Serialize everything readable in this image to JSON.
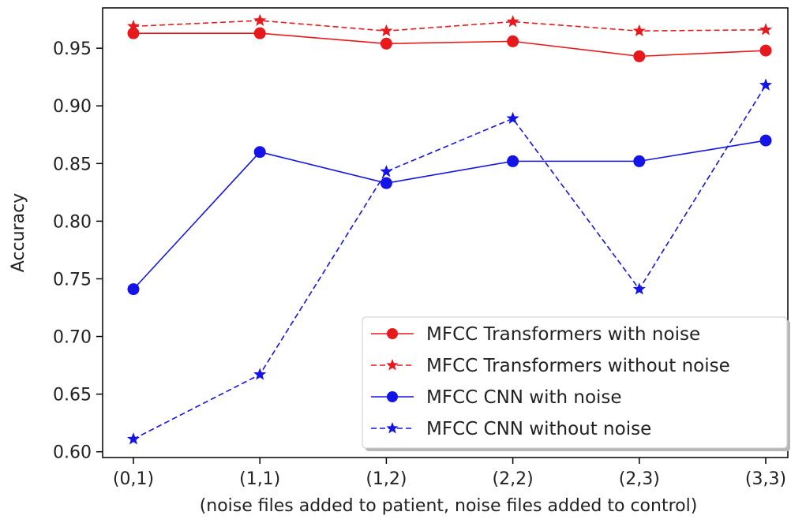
{
  "chart_data": {
    "type": "line",
    "title": "",
    "xlabel": "(noise files added to patient, noise files added to control)",
    "ylabel": "Accuracy",
    "categories": [
      "(0,1)",
      "(1,1)",
      "(1,2)",
      "(2,2)",
      "(2,3)",
      "(3,3)"
    ],
    "yticks": [
      "0.60",
      "0.65",
      "0.70",
      "0.75",
      "0.80",
      "0.85",
      "0.90",
      "0.95"
    ],
    "ylim": [
      0.595,
      0.985
    ],
    "grid": false,
    "legend_position": "lower-right",
    "series": [
      {
        "name": "MFCC Transformers with noise",
        "values": [
          0.963,
          0.963,
          0.954,
          0.956,
          0.943,
          0.948
        ],
        "color": "#e8191c",
        "linestyle": "solid",
        "marker": "circle"
      },
      {
        "name": "MFCC Transformers without noise",
        "values": [
          0.969,
          0.974,
          0.965,
          0.973,
          0.965,
          0.966
        ],
        "color": "#e8191c",
        "linestyle": "dashed",
        "marker": "star"
      },
      {
        "name": "MFCC CNN with noise",
        "values": [
          0.741,
          0.86,
          0.833,
          0.852,
          0.852,
          0.87
        ],
        "color": "#1414e6",
        "linestyle": "solid",
        "marker": "circle"
      },
      {
        "name": "MFCC CNN without noise",
        "values": [
          0.611,
          0.667,
          0.843,
          0.889,
          0.741,
          0.918
        ],
        "color": "#1414e6",
        "linestyle": "dashed",
        "marker": "star"
      }
    ]
  }
}
